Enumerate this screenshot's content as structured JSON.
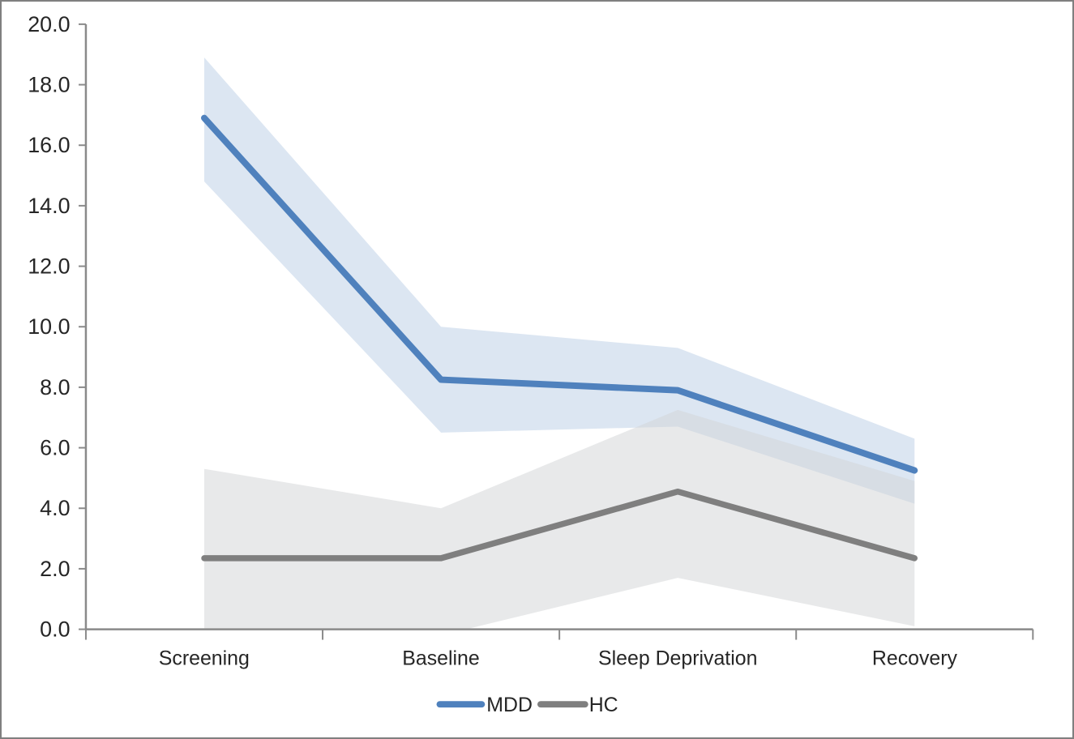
{
  "chart_data": {
    "type": "line",
    "title": "",
    "xlabel": "",
    "ylabel": "",
    "grid": false,
    "categories": [
      "Screening",
      "Baseline",
      "Sleep Deprivation",
      "Recovery"
    ],
    "series": [
      {
        "name": "MDD",
        "values": [
          16.9,
          8.25,
          7.9,
          5.25
        ],
        "band_upper": [
          18.9,
          10.0,
          9.3,
          6.3
        ],
        "band_lower": [
          14.8,
          6.5,
          6.7,
          4.15
        ],
        "line_color": "#4f81bd",
        "band_color": "#dce6f2",
        "band_opacity": 1
      },
      {
        "name": "HC",
        "values": [
          2.35,
          2.35,
          4.55,
          2.35
        ],
        "band_upper": [
          5.3,
          4.0,
          7.25,
          4.9
        ],
        "band_lower": [
          0.0,
          -0.2,
          1.7,
          0.1
        ],
        "line_color": "#7f7f7f",
        "band_color": "#d2d3d5",
        "band_opacity": 0.5
      }
    ],
    "ylim": [
      0,
      20
    ],
    "y_ticks": [
      {
        "value": 0,
        "label": "0.0"
      },
      {
        "value": 2,
        "label": "2.0"
      },
      {
        "value": 4,
        "label": "4.0"
      },
      {
        "value": 6,
        "label": "6.0"
      },
      {
        "value": 8,
        "label": "8.0"
      },
      {
        "value": 10,
        "label": "10.0"
      },
      {
        "value": 12,
        "label": "12.0"
      },
      {
        "value": 14,
        "label": "14.0"
      },
      {
        "value": 16,
        "label": "16.0"
      },
      {
        "value": 18,
        "label": "18.0"
      },
      {
        "value": 20,
        "label": "20.0"
      }
    ],
    "legend": {
      "position": "bottom",
      "entries": [
        "MDD",
        "HC"
      ]
    }
  },
  "frame": {
    "background_color": "#ffffff",
    "border_color": "#7f7f7f",
    "axis_color": "#8a8a8a",
    "text_color": "#262626"
  }
}
